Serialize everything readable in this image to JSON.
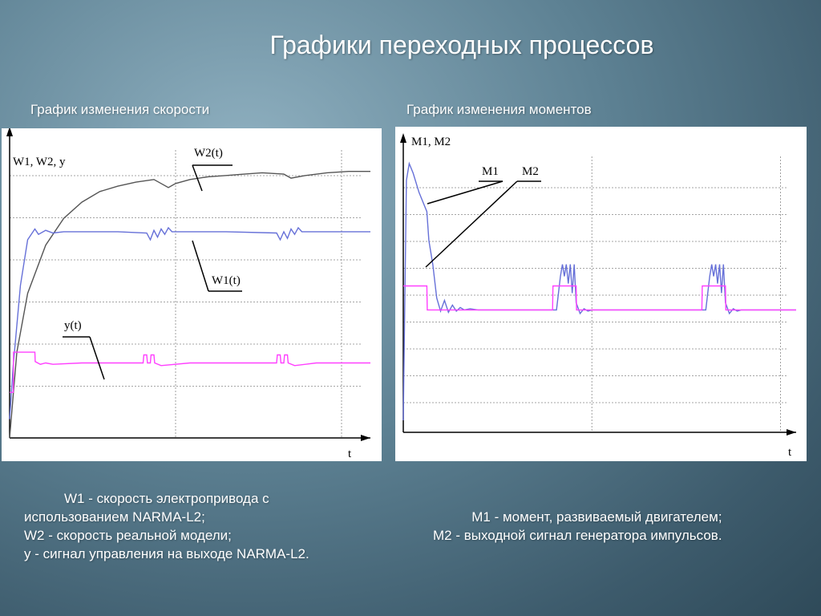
{
  "slide": {
    "title": "Графики переходных процессов"
  },
  "left_panel": {
    "title": "График изменения скорости",
    "caption_lines": [
      "W1 - скорость электропривода с",
      "использованием NARMA-L2;",
      "W2 - скорость реальной модели;",
      "y - сигнал управления на выходе NARMA-L2."
    ]
  },
  "right_panel": {
    "title": "График изменения моментов",
    "caption_lines": [
      "M1 - момент, развиваемый двигателем;",
      "M2 - выходной сигнал генератора импульсов."
    ]
  },
  "colors": {
    "w2": "#555555",
    "w1": "#6670d8",
    "y": "#ff40ff",
    "m1": "#6670d8",
    "m2": "#ff40ff",
    "grid": "#888888",
    "axis": "#000000"
  },
  "chart_data": [
    {
      "type": "line",
      "ylabel": "W1, W2, y",
      "xlabel": "t",
      "grid": true,
      "xlim": [
        0,
        1
      ],
      "ylim": [
        -0.12,
        1.0
      ],
      "annotations": [
        "W2(t)",
        "W1(t)",
        "y(t)"
      ],
      "series": [
        {
          "name": "W2(t)",
          "x": [
            0,
            0.02,
            0.05,
            0.1,
            0.15,
            0.2,
            0.25,
            0.3,
            0.35,
            0.4,
            0.42,
            0.44,
            0.46,
            0.5,
            0.55,
            0.6,
            0.65,
            0.7,
            0.76,
            0.78,
            0.82,
            0.88,
            0.94,
            1.0
          ],
          "y": [
            -0.12,
            0.2,
            0.42,
            0.6,
            0.7,
            0.76,
            0.8,
            0.82,
            0.835,
            0.845,
            0.83,
            0.815,
            0.83,
            0.845,
            0.855,
            0.86,
            0.865,
            0.87,
            0.865,
            0.85,
            0.86,
            0.87,
            0.875,
            0.875
          ]
        },
        {
          "name": "W1(t)",
          "x": [
            0,
            0.01,
            0.03,
            0.05,
            0.07,
            0.08,
            0.1,
            0.12,
            0.15,
            0.2,
            0.3,
            0.38,
            0.39,
            0.4,
            0.41,
            0.42,
            0.43,
            0.44,
            0.45,
            0.5,
            0.6,
            0.74,
            0.75,
            0.76,
            0.77,
            0.78,
            0.79,
            0.8,
            0.81,
            0.85,
            0.9,
            1.0
          ],
          "y": [
            -0.05,
            0.15,
            0.45,
            0.62,
            0.66,
            0.64,
            0.655,
            0.645,
            0.65,
            0.65,
            0.65,
            0.645,
            0.62,
            0.655,
            0.63,
            0.66,
            0.64,
            0.665,
            0.65,
            0.65,
            0.65,
            0.645,
            0.62,
            0.65,
            0.625,
            0.66,
            0.64,
            0.665,
            0.65,
            0.65,
            0.65,
            0.65
          ]
        },
        {
          "name": "y(t)",
          "x": [
            0,
            0.01,
            0.011,
            0.07,
            0.071,
            0.085,
            0.1,
            0.12,
            0.2,
            0.36,
            0.37,
            0.372,
            0.38,
            0.382,
            0.39,
            0.392,
            0.4,
            0.402,
            0.42,
            0.5,
            0.73,
            0.74,
            0.742,
            0.75,
            0.752,
            0.76,
            0.762,
            0.77,
            0.772,
            0.79,
            0.85,
            1.0
          ],
          "y": [
            0.05,
            0.05,
            0.2,
            0.2,
            0.165,
            0.155,
            0.16,
            0.155,
            0.16,
            0.16,
            0.16,
            0.19,
            0.19,
            0.16,
            0.16,
            0.19,
            0.19,
            0.16,
            0.15,
            0.16,
            0.16,
            0.16,
            0.19,
            0.19,
            0.16,
            0.16,
            0.19,
            0.19,
            0.16,
            0.15,
            0.16,
            0.16
          ]
        }
      ]
    },
    {
      "type": "line",
      "ylabel": "M1, M2",
      "xlabel": "t",
      "grid": true,
      "xlim": [
        0,
        1
      ],
      "ylim": [
        -0.2,
        1.0
      ],
      "annotations": [
        "M1",
        "M2"
      ],
      "series": [
        {
          "name": "M1",
          "x": [
            0,
            0.008,
            0.015,
            0.025,
            0.04,
            0.06,
            0.065,
            0.075,
            0.085,
            0.095,
            0.105,
            0.115,
            0.125,
            0.135,
            0.145,
            0.155,
            0.17,
            0.19,
            0.2,
            0.39,
            0.4,
            0.405,
            0.41,
            0.415,
            0.42,
            0.425,
            0.43,
            0.435,
            0.44,
            0.45,
            0.46,
            0.47,
            0.48,
            0.49,
            0.5,
            0.77,
            0.78,
            0.785,
            0.79,
            0.795,
            0.8,
            0.805,
            0.81,
            0.815,
            0.82,
            0.83,
            0.84,
            0.85,
            0.86,
            1.0
          ],
          "y": [
            -0.15,
            0.85,
            0.92,
            0.88,
            0.8,
            0.72,
            0.6,
            0.5,
            0.36,
            0.305,
            0.35,
            0.3,
            0.33,
            0.305,
            0.32,
            0.31,
            0.315,
            0.31,
            0.31,
            0.31,
            0.45,
            0.5,
            0.45,
            0.5,
            0.42,
            0.5,
            0.38,
            0.5,
            0.34,
            0.295,
            0.315,
            0.305,
            0.31,
            0.31,
            0.31,
            0.31,
            0.45,
            0.5,
            0.45,
            0.5,
            0.42,
            0.5,
            0.38,
            0.5,
            0.34,
            0.295,
            0.315,
            0.305,
            0.31,
            0.31
          ]
        },
        {
          "name": "M2",
          "x": [
            0,
            0.04,
            0.041,
            0.06,
            0.061,
            0.38,
            0.381,
            0.44,
            0.441,
            0.76,
            0.761,
            0.82,
            0.821,
            1.0
          ],
          "y": [
            0.41,
            0.41,
            0.41,
            0.41,
            0.31,
            0.31,
            0.41,
            0.41,
            0.31,
            0.31,
            0.41,
            0.41,
            0.31,
            0.31
          ]
        }
      ]
    }
  ]
}
